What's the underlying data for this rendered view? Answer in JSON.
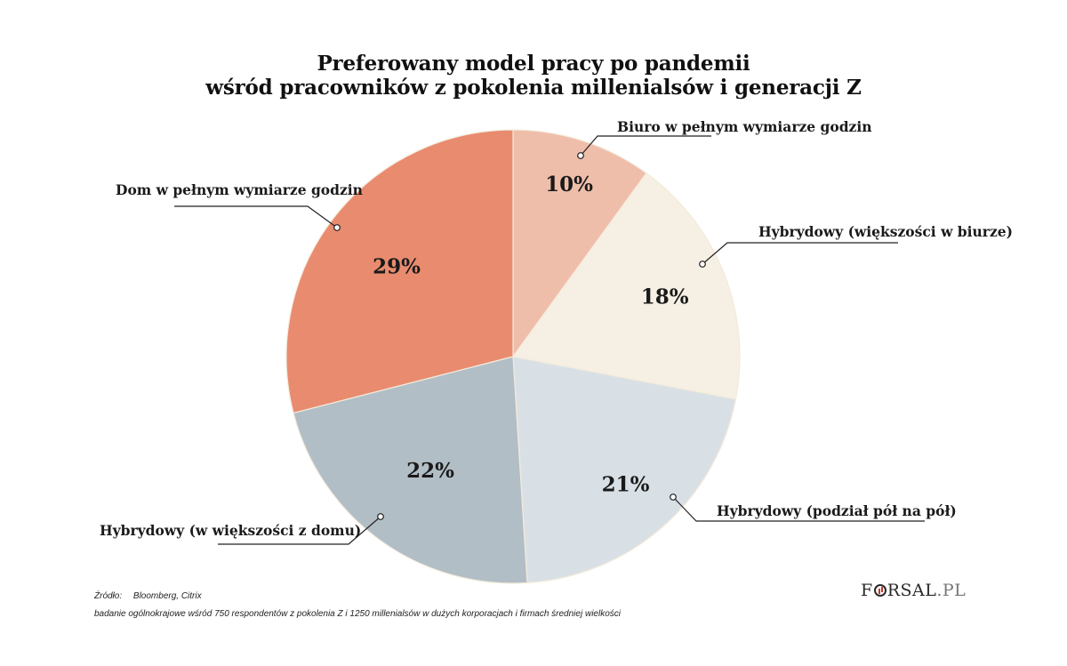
{
  "chart_data": {
    "type": "pie",
    "title_lines": [
      "Preferowany model pracy po pandemii",
      "wśród pracowników z pokolenia millenialsów i generacji Z"
    ],
    "categories": [
      "Biuro w pełnym wymiarze godzin",
      "Hybrydowy (większości w biurze)",
      "Hybrydowy (podział pół na pół)",
      "Hybrydowy (w większości z domu)",
      "Dom w pełnym wymiarze godzin"
    ],
    "values": [
      10,
      18,
      21,
      22,
      29
    ],
    "value_labels": [
      "10%",
      "18%",
      "21%",
      "22%",
      "29%"
    ],
    "colors": [
      "#efbeaa",
      "#f6efe3",
      "#d9e0e5",
      "#b2bec5",
      "#e98b6f"
    ]
  },
  "source": {
    "label": "Źródło:",
    "text": "Bloomberg, Citrix",
    "note": "badanie ogólnokrajowe wśród 750 respondentów z pokolenia Z i 1250 millenialsów w dużych korporacjach i firmach średniej wielkości"
  },
  "logo": {
    "main_before": "F",
    "main_after": "RSAL",
    "ext": ".PL"
  }
}
